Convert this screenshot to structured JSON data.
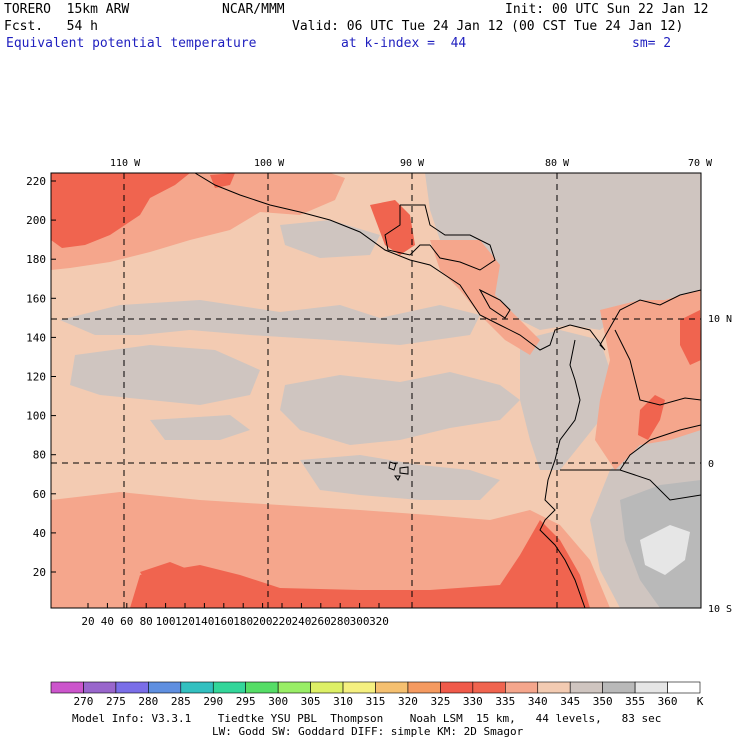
{
  "header": {
    "model": "TORERO  15km ARW",
    "center": "NCAR/MMM",
    "init": "Init: 00 UTC Sun 22 Jan 12",
    "fcst": "Fcst.   54 h",
    "valid": "Valid: 06 UTC Tue 24 Jan 12 (00 CST Tue 24 Jan 12)",
    "field": "Equivalent potential temperature",
    "level": "at k-index =  44",
    "smooth": "sm= 2"
  },
  "map": {
    "lon_labels": [
      "110 W",
      "100 W",
      "90 W",
      "80 W",
      "70 W"
    ],
    "lat_labels": [
      "10 N",
      "0",
      "10 S"
    ],
    "y_ticks": [
      "220",
      "200",
      "180",
      "160",
      "140",
      "120",
      "100",
      "80",
      "60",
      "40",
      "20"
    ],
    "x_ticks": [
      "20",
      "40",
      "60",
      "80",
      "100",
      "120",
      "140",
      "160",
      "180",
      "200",
      "220",
      "240",
      "260",
      "280",
      "300",
      "320"
    ]
  },
  "colorbar": {
    "labels": [
      "270",
      "275",
      "280",
      "285",
      "290",
      "295",
      "300",
      "305",
      "310",
      "315",
      "320",
      "325",
      "330",
      "335",
      "340",
      "345",
      "350",
      "355",
      "360"
    ],
    "unit": "K",
    "colors": [
      "#cc55cc",
      "#9966cc",
      "#7a6ee8",
      "#5f8fe0",
      "#33c0c0",
      "#33d69a",
      "#55dd66",
      "#99ee66",
      "#ddf066",
      "#f5f080",
      "#f5c070",
      "#f59a60",
      "#f05a4a",
      "#f0644f",
      "#f5a68c",
      "#f3cbb2",
      "#cfc5c0",
      "#b9b9b9",
      "#e6e6e6",
      "#ffffff"
    ]
  },
  "footer": {
    "line1": "Model Info: V3.3.1    Tiedtke YSU PBL  Thompson    Noah LSM  15 km,   44 levels,   83 sec",
    "line2": "LW: Godd SW: Goddard DIFF: simple KM: 2D Smagor"
  }
}
